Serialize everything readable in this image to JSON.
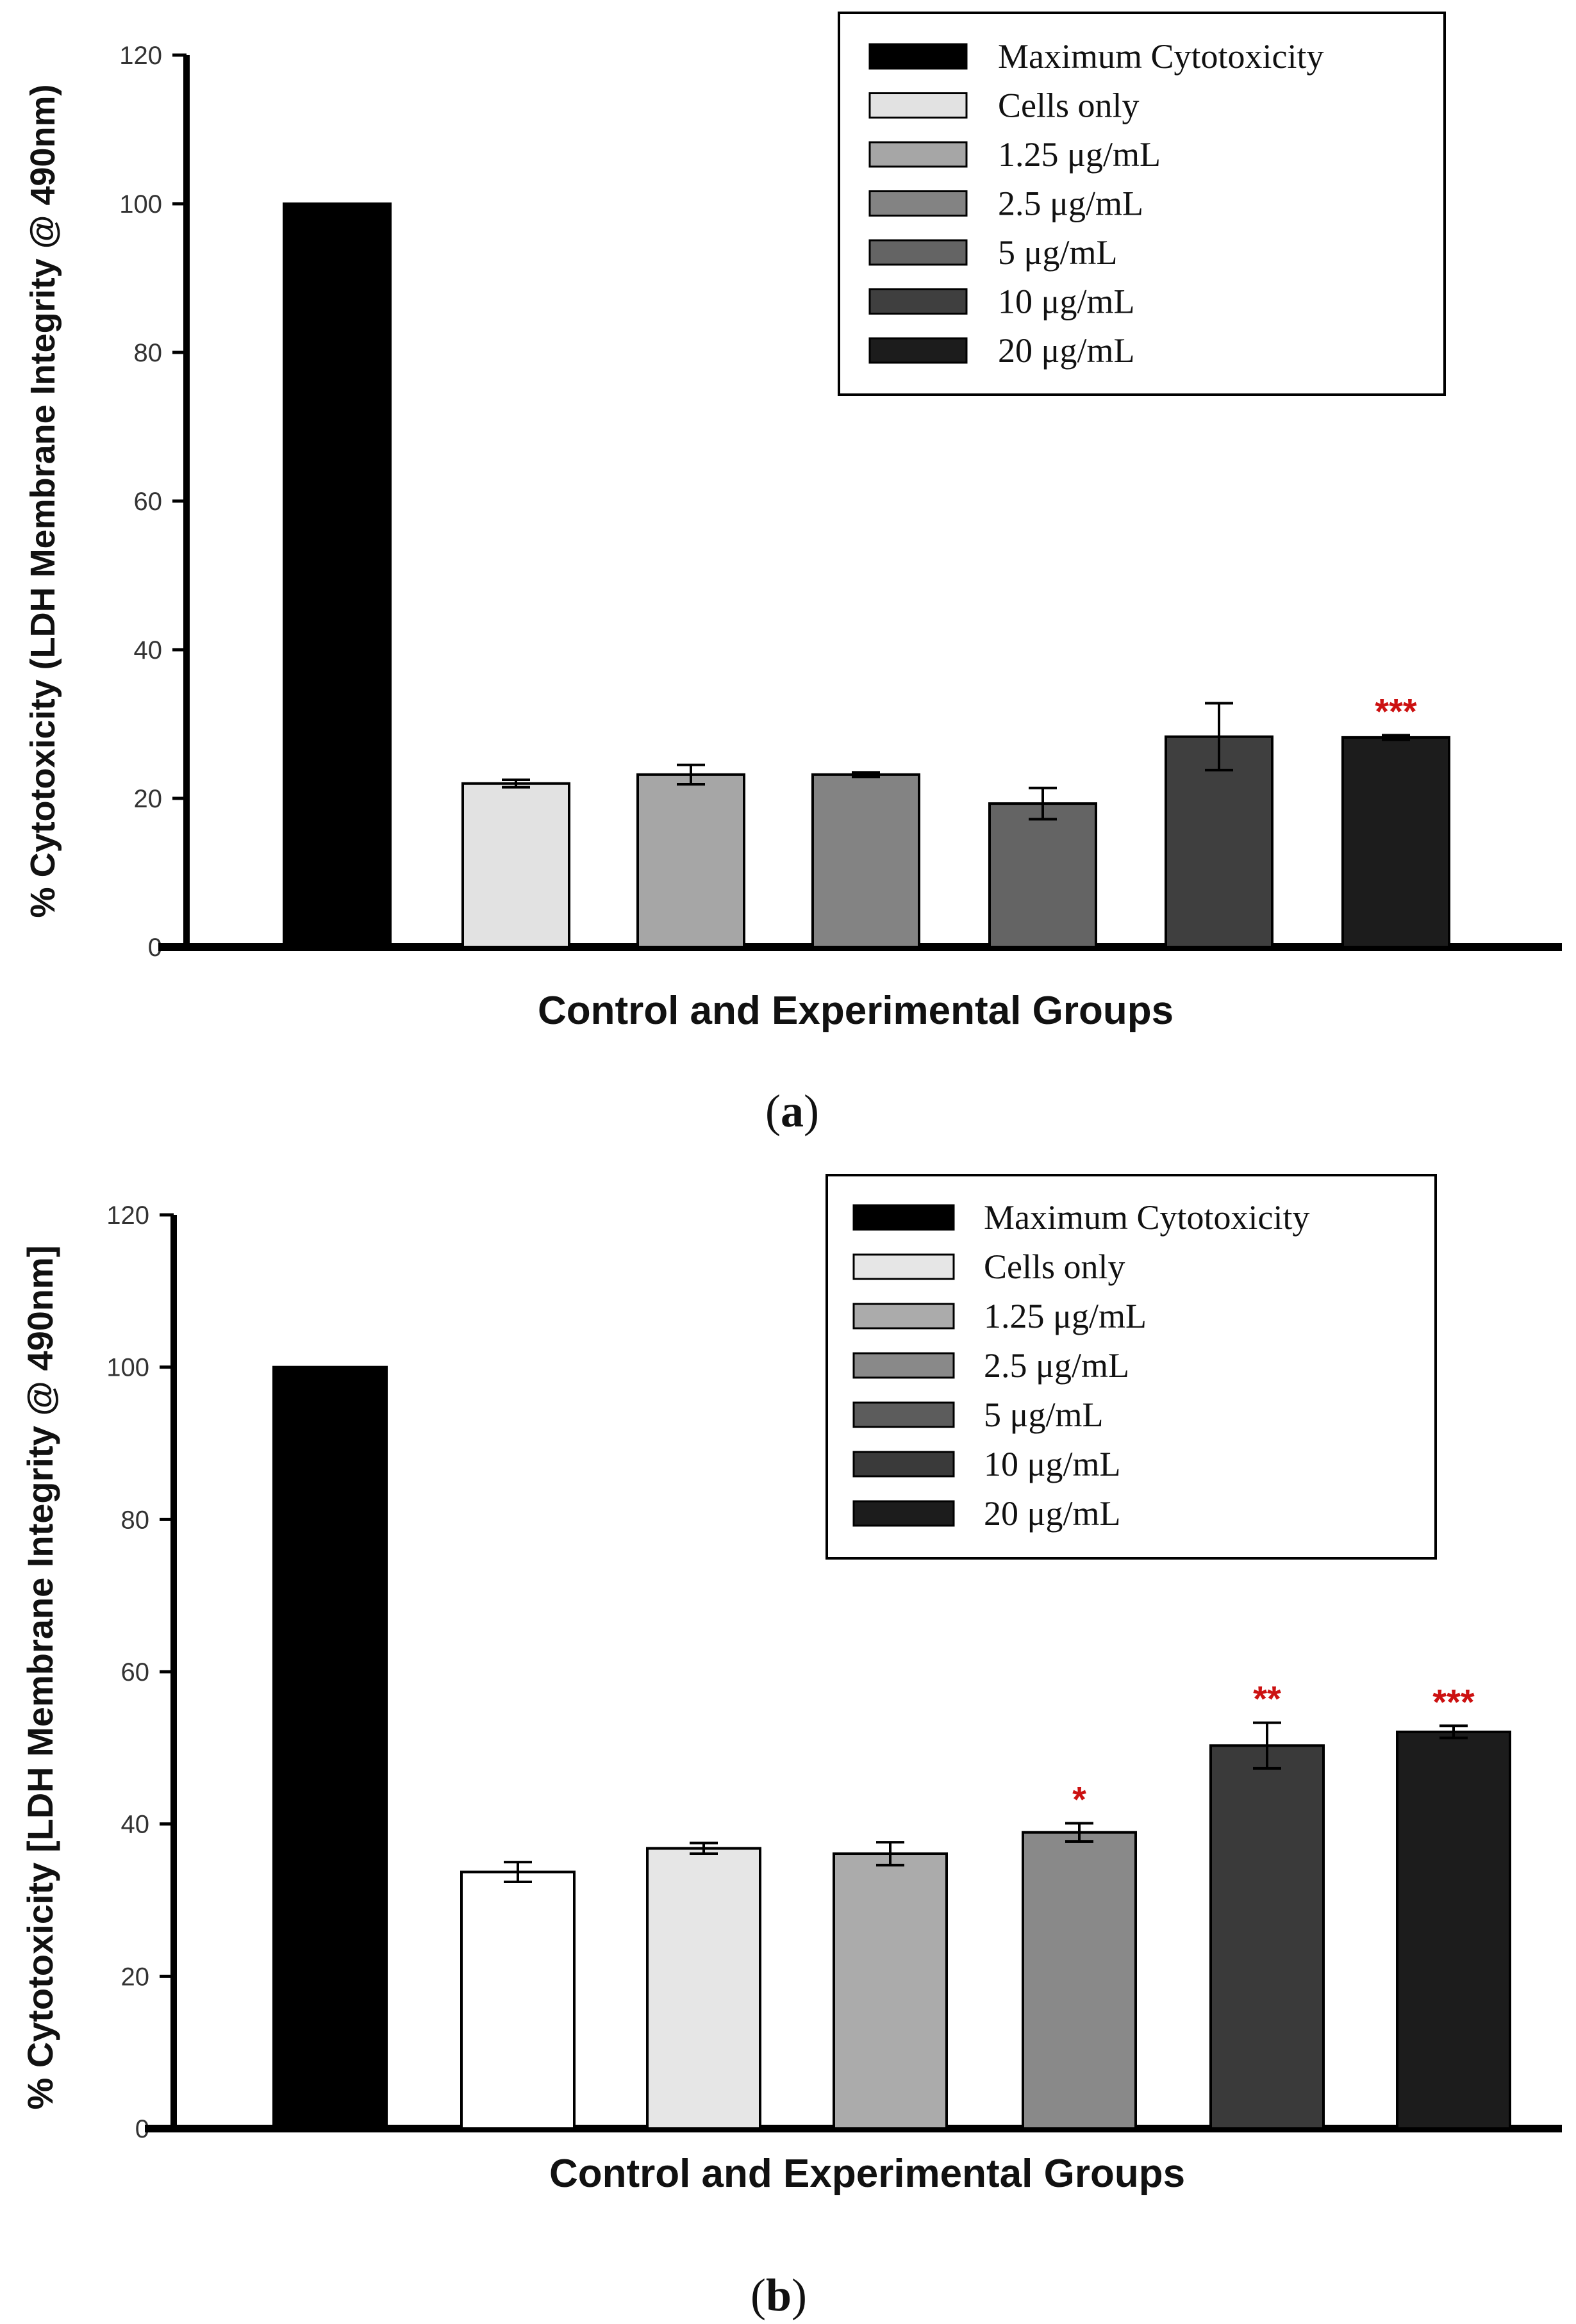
{
  "chart_data": [
    {
      "type": "bar",
      "panel_label": "a",
      "ylabel": "% Cytotoxicity (LDH Membrane Integrity @ 490nm)",
      "xlabel": "Control and Experimental Groups",
      "ylim": [
        0,
        120
      ],
      "yticks": [
        "0",
        "20",
        "40",
        "60",
        "80",
        "100",
        "120"
      ],
      "legend_position": "top-right",
      "legend": [
        {
          "label": "Maximum Cytotoxicity",
          "color": "#000000"
        },
        {
          "label": "Cells only",
          "color": "#e2e2e2"
        },
        {
          "label": "1.25 μg/mL",
          "color": "#a6a6a6"
        },
        {
          "label": "2.5 μg/mL",
          "color": "#838383"
        },
        {
          "label": "5 μg/mL",
          "color": "#646464"
        },
        {
          "label": "10 μg/mL",
          "color": "#3f3f3f"
        },
        {
          "label": "20 μg/mL",
          "color": "#1c1c1c"
        }
      ],
      "bars": [
        {
          "value": 100,
          "error": 0,
          "color": "#000000",
          "sig": ""
        },
        {
          "value": 22,
          "error": 0.5,
          "color": "#e2e2e2",
          "sig": ""
        },
        {
          "value": 23.2,
          "error": 1.3,
          "color": "#a6a6a6",
          "sig": ""
        },
        {
          "value": 23.2,
          "error": 0.3,
          "color": "#838383",
          "sig": ""
        },
        {
          "value": 19.3,
          "error": 2.1,
          "color": "#646464",
          "sig": ""
        },
        {
          "value": 28.3,
          "error": 4.5,
          "color": "#3f3f3f",
          "sig": ""
        },
        {
          "value": 28.2,
          "error": 0.3,
          "color": "#1c1c1c",
          "sig": "***"
        }
      ]
    },
    {
      "type": "bar",
      "panel_label": "b",
      "ylabel": "% Cytotoxicity [LDH Membrane Integrity @ 490nm]",
      "xlabel": "Control and Experimental Groups",
      "ylim": [
        0,
        120
      ],
      "yticks": [
        "0",
        "20",
        "40",
        "60",
        "80",
        "100",
        "120"
      ],
      "legend_position": "top-right",
      "legend": [
        {
          "label": "Maximum Cytotoxicity",
          "color": "#000000"
        },
        {
          "label": "Cells only",
          "color": "#e6e6e6"
        },
        {
          "label": "1.25 μg/mL",
          "color": "#ababab"
        },
        {
          "label": "2.5 μg/mL",
          "color": "#898989"
        },
        {
          "label": "5 μg/mL",
          "color": "#5c5c5c"
        },
        {
          "label": "10 μg/mL",
          "color": "#3a3a3a"
        },
        {
          "label": "20 μg/mL",
          "color": "#1c1c1c"
        }
      ],
      "bars": [
        {
          "value": 100,
          "error": 0,
          "color": "#000000",
          "sig": ""
        },
        {
          "value": 33.7,
          "error": 1.3,
          "color": "#ffffff",
          "sig": ""
        },
        {
          "value": 36.8,
          "error": 0.7,
          "color": "#e6e6e6",
          "sig": ""
        },
        {
          "value": 36.1,
          "error": 1.5,
          "color": "#ababab",
          "sig": ""
        },
        {
          "value": 38.9,
          "error": 1.2,
          "color": "#898989",
          "sig": "*"
        },
        {
          "value": 50.3,
          "error": 3.0,
          "color": "#3a3a3a",
          "sig": "**"
        },
        {
          "value": 52.1,
          "error": 0.8,
          "color": "#1c1c1c",
          "sig": "***"
        }
      ]
    }
  ]
}
